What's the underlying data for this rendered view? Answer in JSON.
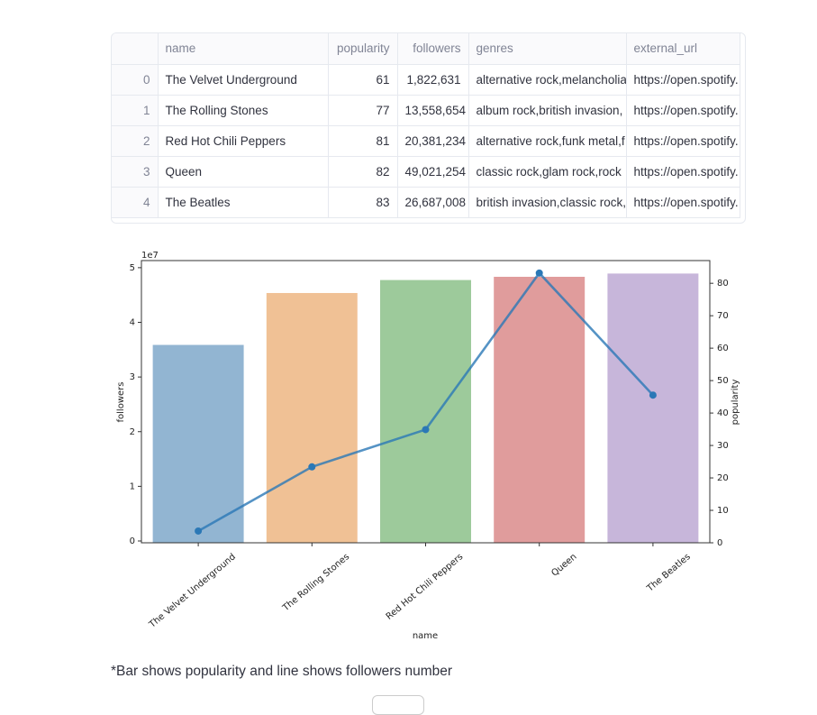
{
  "table": {
    "columns": [
      "name",
      "popularity",
      "followers",
      "genres",
      "external_url"
    ],
    "rows": [
      [
        0,
        "The Velvet Underground",
        61,
        "1,822,631",
        "alternative rock,melancholia",
        "https://open.spotify."
      ],
      [
        1,
        "The Rolling Stones",
        77,
        "13,558,654",
        "album rock,british invasion,",
        "https://open.spotify."
      ],
      [
        2,
        "Red Hot Chili Peppers",
        81,
        "20,381,234",
        "alternative rock,funk metal,f",
        "https://open.spotify."
      ],
      [
        3,
        "Queen",
        82,
        "49,021,254",
        "classic rock,glam rock,rock",
        "https://open.spotify."
      ],
      [
        4,
        "The Beatles",
        83,
        "26,687,008",
        "british invasion,classic rock,",
        "https://open.spotify."
      ]
    ]
  },
  "chart_data": {
    "type": "bar",
    "categories": [
      "The Velvet Underground",
      "The Rolling Stones",
      "Red Hot Chili Peppers",
      "Queen",
      "The Beatles"
    ],
    "series": [
      {
        "type": "bar",
        "axis": "y2",
        "colors": [
          "#92b5d2",
          "#f0c195",
          "#9dca9b",
          "#e09c9c",
          "#c7b6da"
        ],
        "values": [
          61,
          77,
          81,
          82,
          83
        ]
      },
      {
        "type": "line",
        "color": "#2b78b6",
        "values": [
          1822631,
          13558654,
          20381234,
          49021254,
          26687008
        ]
      }
    ],
    "xlabel": "name",
    "ylabel": "followers",
    "y2label": "popularity",
    "y_offset_label": "1e7",
    "ylim": [
      -330000,
      51300000
    ],
    "yticks": [
      0,
      {
        "value": 10000000,
        "label": "1"
      },
      {
        "value": 20000000,
        "label": "2"
      },
      {
        "value": 30000000,
        "label": "3"
      },
      {
        "value": 40000000,
        "label": "4"
      },
      {
        "value": 50000000,
        "label": "5"
      }
    ],
    "y2lim": [
      0,
      87
    ],
    "y2ticks": [
      0,
      10,
      20,
      30,
      40,
      50,
      60,
      70,
      80
    ]
  },
  "caption": "*Bar shows popularity and line shows followers number"
}
